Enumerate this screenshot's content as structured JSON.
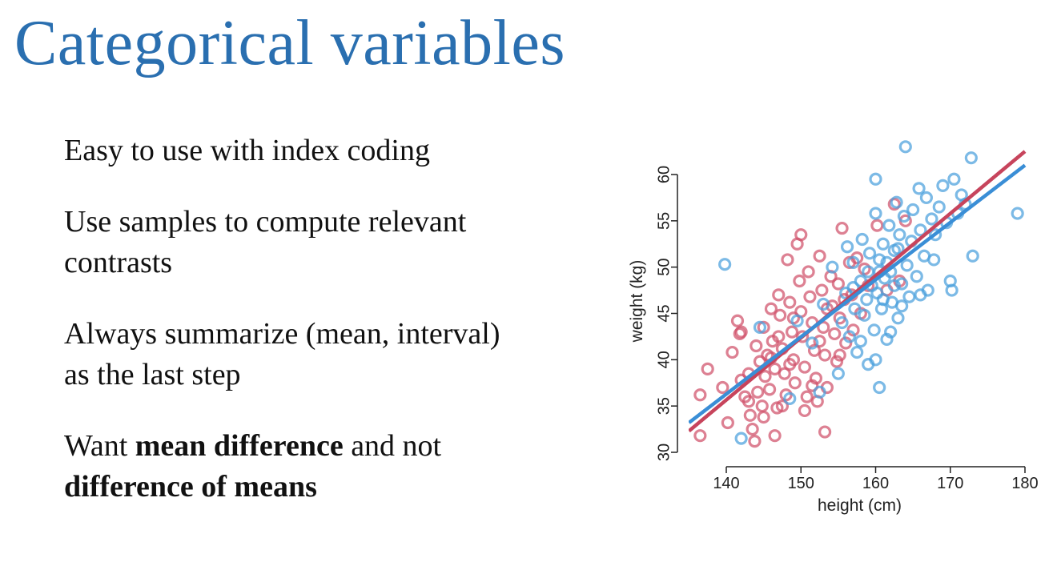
{
  "slide": {
    "title": "Categorical variables",
    "bullets": [
      {
        "parts": [
          {
            "text": "Easy to use with index coding",
            "bold": false
          }
        ]
      },
      {
        "parts": [
          {
            "text": "Use samples to compute relevant",
            "bold": false
          },
          {
            "text": "BR"
          },
          {
            "text": "contrasts",
            "bold": false
          }
        ]
      },
      {
        "parts": [
          {
            "text": "Always summarize (mean, interval)",
            "bold": false
          },
          {
            "text": "BR"
          },
          {
            "text": "as the last step",
            "bold": false
          }
        ]
      },
      {
        "parts": [
          {
            "text": "Want ",
            "bold": false
          },
          {
            "text": "mean difference",
            "bold": true
          },
          {
            "text": " and not",
            "bold": false
          },
          {
            "text": "BR"
          },
          {
            "text": "difference of means",
            "bold": true
          }
        ]
      }
    ]
  },
  "chart_data": {
    "type": "scatter",
    "title": "",
    "xlabel": "height (cm)",
    "ylabel": "weight (kg)",
    "xlim": [
      135,
      180
    ],
    "ylim": [
      30,
      62
    ],
    "xticks": [
      140,
      150,
      160,
      170,
      180
    ],
    "yticks": [
      30,
      35,
      40,
      45,
      50,
      55,
      60
    ],
    "grid": false,
    "legend": "none",
    "series": [
      {
        "color": "#d0506a",
        "points": [
          [
            136.5,
            36.2
          ],
          [
            136.5,
            31.8
          ],
          [
            137.5,
            39.0
          ],
          [
            139.5,
            37.0
          ],
          [
            140.2,
            33.2
          ],
          [
            140.8,
            40.8
          ],
          [
            141.5,
            44.2
          ],
          [
            141.8,
            42.8
          ],
          [
            142.0,
            37.8
          ],
          [
            142.5,
            36.0
          ],
          [
            143.0,
            38.5
          ],
          [
            143.2,
            34.0
          ],
          [
            143.5,
            32.5
          ],
          [
            143.8,
            31.2
          ],
          [
            144.0,
            41.5
          ],
          [
            144.2,
            36.5
          ],
          [
            144.5,
            39.8
          ],
          [
            144.8,
            35.0
          ],
          [
            145.0,
            43.5
          ],
          [
            145.2,
            38.2
          ],
          [
            145.5,
            40.5
          ],
          [
            145.8,
            36.8
          ],
          [
            146.0,
            45.5
          ],
          [
            146.2,
            42.0
          ],
          [
            146.5,
            39.0
          ],
          [
            146.8,
            34.8
          ],
          [
            146.5,
            31.8
          ],
          [
            147.0,
            47.0
          ],
          [
            147.2,
            44.8
          ],
          [
            147.5,
            41.2
          ],
          [
            147.8,
            38.5
          ],
          [
            148.0,
            36.2
          ],
          [
            148.2,
            50.8
          ],
          [
            148.5,
            46.2
          ],
          [
            148.8,
            43.0
          ],
          [
            149.0,
            40.0
          ],
          [
            149.2,
            37.5
          ],
          [
            149.5,
            52.5
          ],
          [
            149.8,
            48.5
          ],
          [
            150.0,
            45.2
          ],
          [
            150.2,
            42.5
          ],
          [
            150.5,
            39.2
          ],
          [
            150.8,
            36.0
          ],
          [
            150.0,
            53.5
          ],
          [
            151.0,
            49.5
          ],
          [
            151.2,
            46.8
          ],
          [
            151.5,
            44.0
          ],
          [
            151.8,
            41.0
          ],
          [
            152.0,
            38.0
          ],
          [
            152.2,
            35.5
          ],
          [
            152.5,
            51.2
          ],
          [
            152.8,
            47.5
          ],
          [
            153.0,
            43.5
          ],
          [
            153.2,
            40.5
          ],
          [
            153.5,
            37.0
          ],
          [
            153.2,
            32.2
          ],
          [
            154.0,
            49.0
          ],
          [
            154.2,
            45.8
          ],
          [
            154.5,
            42.8
          ],
          [
            154.8,
            39.8
          ],
          [
            155.0,
            48.2
          ],
          [
            155.2,
            44.5
          ],
          [
            155.5,
            54.2
          ],
          [
            155.8,
            46.5
          ],
          [
            156.0,
            41.8
          ],
          [
            156.5,
            50.5
          ],
          [
            156.8,
            47.0
          ],
          [
            157.0,
            43.2
          ],
          [
            157.5,
            51.0
          ],
          [
            158.0,
            45.0
          ],
          [
            158.5,
            49.8
          ],
          [
            159.0,
            48.0
          ],
          [
            160.2,
            54.5
          ],
          [
            161.5,
            47.5
          ],
          [
            162.5,
            56.8
          ],
          [
            163.2,
            48.5
          ],
          [
            164.0,
            55.0
          ],
          [
            142.0,
            43.0
          ],
          [
            143.0,
            35.5
          ],
          [
            145.0,
            33.8
          ],
          [
            147.5,
            35.0
          ],
          [
            148.5,
            39.5
          ],
          [
            150.5,
            34.5
          ],
          [
            151.5,
            37.2
          ],
          [
            152.5,
            42.0
          ],
          [
            153.5,
            45.5
          ],
          [
            147.0,
            42.5
          ],
          [
            149.0,
            44.5
          ],
          [
            146.0,
            40.2
          ],
          [
            155.2,
            40.5
          ]
        ]
      },
      {
        "color": "#4a9fdc",
        "points": [
          [
            139.8,
            50.3
          ],
          [
            142.0,
            31.5
          ],
          [
            144.5,
            43.5
          ],
          [
            148.5,
            35.8
          ],
          [
            149.5,
            44.2
          ],
          [
            151.5,
            41.8
          ],
          [
            152.5,
            36.5
          ],
          [
            153.0,
            46.0
          ],
          [
            154.2,
            50.0
          ],
          [
            155.0,
            38.5
          ],
          [
            155.5,
            44.0
          ],
          [
            156.0,
            47.2
          ],
          [
            156.5,
            42.5
          ],
          [
            157.0,
            50.5
          ],
          [
            157.2,
            45.5
          ],
          [
            157.5,
            40.8
          ],
          [
            158.0,
            48.5
          ],
          [
            158.2,
            53.0
          ],
          [
            158.5,
            44.8
          ],
          [
            158.8,
            46.5
          ],
          [
            159.0,
            39.5
          ],
          [
            159.2,
            51.5
          ],
          [
            159.5,
            48.0
          ],
          [
            159.8,
            43.2
          ],
          [
            160.0,
            55.8
          ],
          [
            160.0,
            59.5
          ],
          [
            160.2,
            47.2
          ],
          [
            160.5,
            50.8
          ],
          [
            160.5,
            37.0
          ],
          [
            160.8,
            45.5
          ],
          [
            161.0,
            52.5
          ],
          [
            161.2,
            48.8
          ],
          [
            161.5,
            42.2
          ],
          [
            161.8,
            54.5
          ],
          [
            162.0,
            49.5
          ],
          [
            162.2,
            46.2
          ],
          [
            162.5,
            51.8
          ],
          [
            162.8,
            57.0
          ],
          [
            163.0,
            44.5
          ],
          [
            163.2,
            53.5
          ],
          [
            163.5,
            48.2
          ],
          [
            163.8,
            55.5
          ],
          [
            164.0,
            63.0
          ],
          [
            164.2,
            50.2
          ],
          [
            164.5,
            46.8
          ],
          [
            164.8,
            52.8
          ],
          [
            165.0,
            56.2
          ],
          [
            165.5,
            49.0
          ],
          [
            165.8,
            58.5
          ],
          [
            166.0,
            54.0
          ],
          [
            166.5,
            51.2
          ],
          [
            166.8,
            57.5
          ],
          [
            167.0,
            47.5
          ],
          [
            167.5,
            55.2
          ],
          [
            167.8,
            50.8
          ],
          [
            168.0,
            53.5
          ],
          [
            168.5,
            56.5
          ],
          [
            169.0,
            58.8
          ],
          [
            169.5,
            54.8
          ],
          [
            170.0,
            48.5
          ],
          [
            170.2,
            47.5
          ],
          [
            170.5,
            59.5
          ],
          [
            171.0,
            55.8
          ],
          [
            171.5,
            57.8
          ],
          [
            172.0,
            56.8
          ],
          [
            172.8,
            61.8
          ],
          [
            173.0,
            51.2
          ],
          [
            179.0,
            55.8
          ],
          [
            160.0,
            40.0
          ],
          [
            162.0,
            43.0
          ],
          [
            163.5,
            45.8
          ],
          [
            161.0,
            46.5
          ],
          [
            159.0,
            49.5
          ],
          [
            158.0,
            42.0
          ],
          [
            157.0,
            47.8
          ],
          [
            156.2,
            52.2
          ],
          [
            162.5,
            48.0
          ],
          [
            166.0,
            47.0
          ],
          [
            160.5,
            49.5
          ],
          [
            161.5,
            50.5
          ],
          [
            163.0,
            52.0
          ]
        ]
      }
    ],
    "lines": [
      {
        "color": "#c7445c",
        "x": [
          135,
          180
        ],
        "y": [
          32.3,
          62.5
        ]
      },
      {
        "color": "#3a8ed6",
        "x": [
          135,
          180
        ],
        "y": [
          33.2,
          61.0
        ]
      }
    ]
  }
}
